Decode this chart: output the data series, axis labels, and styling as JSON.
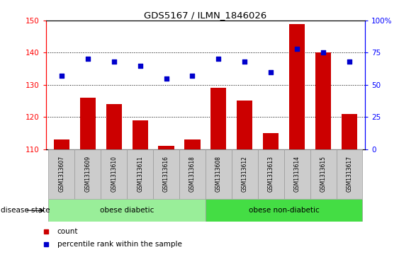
{
  "title": "GDS5167 / ILMN_1846026",
  "samples": [
    "GSM1313607",
    "GSM1313609",
    "GSM1313610",
    "GSM1313611",
    "GSM1313616",
    "GSM1313618",
    "GSM1313608",
    "GSM1313612",
    "GSM1313613",
    "GSM1313614",
    "GSM1313615",
    "GSM1313617"
  ],
  "counts": [
    113,
    126,
    124,
    119,
    111,
    113,
    129,
    125,
    115,
    149,
    140,
    121
  ],
  "percentiles": [
    57,
    70,
    68,
    65,
    55,
    57,
    70,
    68,
    60,
    78,
    75,
    68
  ],
  "group1_label": "obese diabetic",
  "group2_label": "obese non-diabetic",
  "group1_count": 6,
  "group2_count": 6,
  "ylim_left": [
    110,
    150
  ],
  "ylim_right": [
    0,
    100
  ],
  "yticks_left": [
    110,
    120,
    130,
    140,
    150
  ],
  "yticks_right": [
    0,
    25,
    50,
    75,
    100
  ],
  "bar_color": "#cc0000",
  "dot_color": "#0000cc",
  "bar_width": 0.6,
  "disease_state_label": "disease state",
  "group1_bg": "#99ee99",
  "group2_bg": "#44dd44",
  "tick_bg": "#cccccc",
  "legend_items": [
    "count",
    "percentile rank within the sample"
  ]
}
